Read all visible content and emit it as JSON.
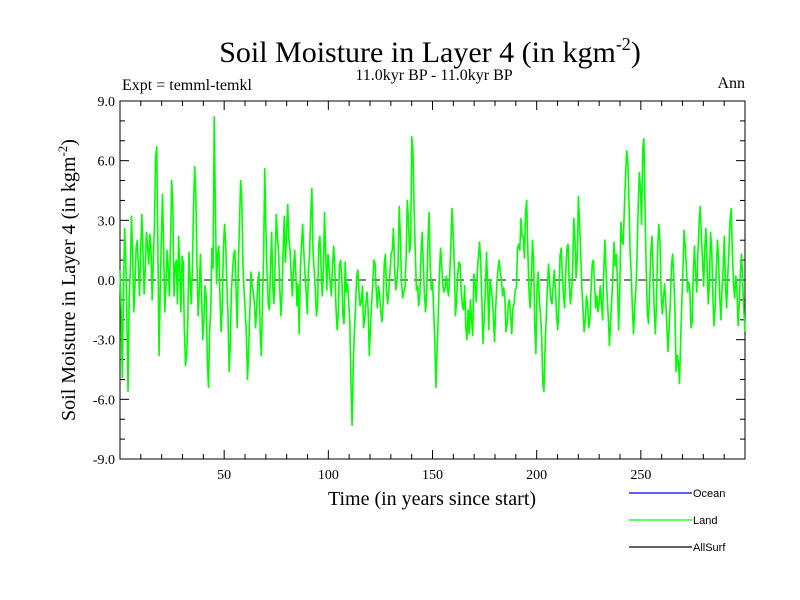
{
  "chart_data": {
    "type": "line",
    "title_main": "Soil Moisture in Layer 4 (in kgm",
    "title_sup": "-2",
    "title_close": ")",
    "subtitle": "11.0kyr BP - 11.0kyr BP",
    "left_label": "Expt = temml-temkl",
    "right_label": "Ann",
    "xlabel": "Time (in years since start)",
    "ylabel_main": "Soil Moisture in Layer 4 (in kgm",
    "ylabel_sup": "-2",
    "ylabel_close": ")",
    "xlim": [
      0,
      300
    ],
    "ylim": [
      -9,
      9
    ],
    "xticks": [
      50,
      100,
      150,
      200,
      250
    ],
    "xtick_labels": [
      "50",
      "100",
      "150",
      "200",
      "250"
    ],
    "yticks": [
      -9,
      -6,
      -3,
      0,
      3,
      6,
      9
    ],
    "ytick_labels": [
      "-9.0",
      "-6.0",
      "-3.0",
      "0.0",
      "3.0",
      "6.0",
      "9.0"
    ],
    "zero_line": 0,
    "legend": [
      {
        "name": "Ocean",
        "color": "#0000ff"
      },
      {
        "name": "Land",
        "color": "#00ff00"
      },
      {
        "name": "AllSurf",
        "color": "#000000"
      }
    ],
    "series": [
      {
        "name": "Land",
        "color": "#00ff00",
        "values": [
          0.5,
          -1.5,
          -4.9,
          -0.8,
          2.6,
          1.2,
          -2.0,
          -5.6,
          -1.0,
          0.6,
          3.2,
          1.3,
          -1.6,
          -0.3,
          1.6,
          2.0,
          0.6,
          -0.8,
          1.5,
          3.3,
          1.4,
          -0.7,
          0.6,
          2.4,
          1.7,
          0.8,
          2.3,
          1.5,
          -1.0,
          1.0,
          2.8,
          6.2,
          6.7,
          1.4,
          -3.8,
          -0.5,
          2.1,
          4.3,
          1.5,
          -1.6,
          -0.3,
          1.5,
          0.6,
          -0.8,
          2.0,
          5.0,
          3.6,
          -0.8,
          0.7,
          1.0,
          -1.2,
          2.2,
          0.7,
          -1.6,
          1.2,
          0.9,
          -2.5,
          -4.3,
          -3.8,
          -2.2,
          1.4,
          0.0,
          -1.2,
          0.6,
          3.7,
          5.7,
          4.2,
          0.8,
          -1.8,
          -0.6,
          1.3,
          -0.7,
          -3.0,
          -2.1,
          -0.3,
          -0.8,
          -4.0,
          -5.4,
          -2.6,
          -1.5,
          1.6,
          0.6,
          8.2,
          3.7,
          -0.2,
          1.3,
          1.7,
          -0.8,
          -2.6,
          -1.4,
          1.6,
          2.8,
          1.8,
          -0.2,
          -1.8,
          -4.6,
          -3.2,
          -0.5,
          0.5,
          1.3,
          1.5,
          -0.5,
          -2.4,
          0.8,
          2.8,
          5.0,
          4.1,
          0.8,
          -0.6,
          -1.5,
          -2.8,
          -5.0,
          -3.5,
          -1.5,
          0.4,
          -0.3,
          -0.6,
          -1.2,
          -2.4,
          -1.4,
          0.0,
          0.4,
          -2.6,
          -3.8,
          -1.1,
          1.2,
          5.6,
          2.5,
          0.3,
          -1.2,
          -1.5,
          0.7,
          2.4,
          -0.4,
          -1.2,
          0.8,
          3.3,
          2.2,
          1.4,
          -0.3,
          -1.8,
          -0.6,
          1.5,
          3.2,
          0.9,
          2.4,
          3.8,
          2.0,
          1.5,
          0.3,
          -0.8,
          0.5,
          1.5,
          0.4,
          -1.3,
          -0.2,
          -2.7,
          0.6,
          1.8,
          2.8,
          1.4,
          0.3,
          -0.6,
          -1.7,
          0.5,
          1.2,
          3.3,
          4.6,
          1.4,
          0.5,
          -0.5,
          -1.8,
          -1.2,
          1.8,
          2.2,
          0.6,
          -0.8,
          0.4,
          3.4,
          1.3,
          -0.5,
          1.3,
          0.6,
          -0.2,
          -0.8,
          0.8,
          1.7,
          0.6,
          -1.4,
          -2.5,
          -1.7,
          0.7,
          1.0,
          0.2,
          -1.8,
          -2.2,
          0.9,
          -0.6,
          -0.2,
          -1.0,
          -2.1,
          -5.1,
          -7.3,
          -4.3,
          -2.6,
          -1.4,
          0.2,
          0.5,
          -0.6,
          -1.3,
          -1.1,
          -0.3,
          -2.4,
          -1.9,
          -1.2,
          -0.6,
          -1.5,
          -3.8,
          -2.4,
          -1.2,
          -0.2,
          1.0,
          0.8,
          -0.5,
          -1.4,
          -0.3,
          -0.8,
          -1.6,
          -2.1,
          -1.2,
          0.8,
          1.3,
          -0.6,
          -1.2,
          -0.5,
          0.4,
          1.3,
          1.5,
          2.6,
          0.6,
          -0.5,
          -0.1,
          0.7,
          3.7,
          2.2,
          -0.1,
          -0.9,
          -0.6,
          -0.4,
          1.0,
          4.0,
          3.1,
          1.4,
          1.8,
          7.2,
          6.4,
          3.6,
          1.4,
          -0.5,
          -0.3,
          -1.3,
          -0.7,
          1.3,
          2.4,
          0.8,
          -0.8,
          -1.6,
          -0.5,
          1.9,
          3.4,
          0.7,
          -0.5,
          -0.1,
          -1.5,
          -3.1,
          -5.4,
          -3.6,
          -1.8,
          0.2,
          1.6,
          0.8,
          -0.3,
          -0.6,
          -0.4,
          0.2,
          -0.4,
          -0.8,
          0.2,
          1.8,
          3.6,
          2.4,
          0.7,
          -1.8,
          -1.0,
          0.3,
          0.9,
          0.8,
          -0.6,
          -1.3,
          -1.5,
          -0.3,
          -2.4,
          -3.0,
          -1.5,
          -2.7,
          -1.0,
          -2.0,
          -2.8,
          0.3,
          -0.2,
          -1.1,
          0.4,
          1.2,
          1.9,
          0.8,
          -1.2,
          -3.2,
          -1.8,
          -0.6,
          1.4,
          -0.3,
          -2.5,
          0.0,
          -0.4,
          -0.9,
          -1.9,
          -3.1,
          -1.4,
          -0.2,
          0.5,
          1.0,
          0.4,
          0.0,
          -0.8,
          -0.4,
          -0.9,
          -2.6,
          -2.2,
          -1.2,
          -1.0,
          -1.8,
          -2.7,
          -1.4,
          -1.2,
          -0.5,
          -0.4,
          1.6,
          1.8,
          1.5,
          3.1,
          2.2,
          2.2,
          1.1,
          3.4,
          4.0,
          1.4,
          -0.6,
          -1.4,
          -0.1,
          2.0,
          1.0,
          -2.3,
          -3.7,
          -0.3,
          0.4,
          -1.0,
          -1.8,
          -2.8,
          -5.2,
          -5.6,
          -3.4,
          -1.9,
          -0.4,
          0.8,
          -0.2,
          -1.0,
          -1.2,
          -0.3,
          0.5,
          -0.4,
          -1.8,
          -2.5,
          -1.4,
          1.2,
          1.6,
          0.3,
          -0.8,
          -1.4,
          0.4,
          1.6,
          1.8,
          -0.1,
          -1.2,
          -0.6,
          0.6,
          3.1,
          2.1,
          0.1,
          1.1,
          4.2,
          2.8,
          1.3,
          -0.4,
          -1.5,
          -2.6,
          -2.0,
          -0.8,
          -1.2,
          -2.4,
          -2.0,
          -0.5,
          0.8,
          1.0,
          -0.2,
          -1.4,
          -0.8,
          -1.6,
          -1.2,
          -0.3,
          -1.1,
          -2.0,
          0.3,
          2.0,
          0.5,
          -0.8,
          -1.9,
          -3.3,
          -2.1,
          -1.0,
          0.3,
          1.9,
          0.7,
          1.3,
          -0.1,
          -2.5,
          -0.5,
          2.9,
          2.0,
          1.8,
          3.6,
          5.2,
          6.5,
          5.9,
          4.0,
          1.4,
          0.3,
          -1.5,
          -2.7,
          -1.3,
          -0.5,
          1.1,
          3.6,
          5.4,
          4.6,
          2.8,
          6.6,
          7.1,
          3.5,
          0.6,
          -1.6,
          -2.2,
          -0.5,
          1.4,
          2.2,
          0.4,
          -1.5,
          -2.7,
          -1.0,
          1.6,
          2.8,
          1.9,
          -0.6,
          -1.7,
          -0.9,
          -0.2,
          -1.1,
          -2.3,
          -3.6,
          -2.4,
          -1.1,
          0.7,
          1.3,
          0.2,
          -1.5,
          -4.6,
          -3.8,
          -4.1,
          -5.2,
          -3.0,
          -1.2,
          0.6,
          2.5,
          1.7,
          0.6,
          -0.6,
          -0.1,
          -0.5,
          -2.4,
          -2.1,
          0.3,
          1.7,
          0.4,
          -0.6,
          1.3,
          2.8,
          3.7,
          2.2,
          1.0,
          -0.3,
          1.6,
          2.6,
          0.8,
          -1.2,
          -0.2,
          2.4,
          1.6,
          -0.8,
          -2.3,
          -1.4,
          0.5,
          2.0,
          1.0,
          -0.8,
          -2.0,
          -0.5,
          0.6,
          2.2,
          -0.3,
          -1.4,
          0.2,
          1.5,
          3.0,
          3.6,
          1.4,
          -0.2,
          -0.9,
          0.2,
          -0.5,
          -2.3,
          -1.2,
          0.4,
          1.3,
          -0.2,
          -1.5,
          -2.6
        ]
      }
    ]
  }
}
